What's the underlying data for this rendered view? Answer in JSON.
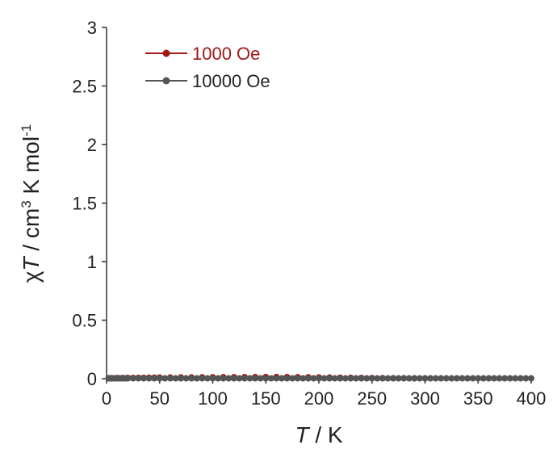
{
  "chart_data": {
    "type": "scatter",
    "xlabel_italic": "T",
    "xlabel_rest": " / K",
    "ylabel_parts": {
      "chi": "χ",
      "T": "T",
      "mid": " / cm",
      "sup1": "3",
      "units": " K mol",
      "sup2": "-1"
    },
    "xlim": [
      0,
      400
    ],
    "ylim": [
      0,
      3
    ],
    "xticks": [
      "0",
      "50",
      "100",
      "150",
      "200",
      "250",
      "300",
      "350",
      "400"
    ],
    "yticks": [
      "0",
      "0.5",
      "1",
      "1.5",
      "2",
      "2.5",
      "3"
    ],
    "grid": false,
    "legend_position": "top-left",
    "series": [
      {
        "name": "1000 Oe",
        "color": "#a01818",
        "x": [
          2,
          5,
          10,
          15,
          20,
          25,
          30,
          35,
          40,
          45,
          50,
          60,
          70,
          80,
          90,
          100,
          110,
          120,
          130,
          140,
          150,
          160,
          170,
          180,
          190,
          200,
          210,
          220,
          230,
          240,
          250,
          260,
          270,
          280,
          290,
          300
        ],
        "y": [
          0.005,
          0.005,
          0.006,
          0.006,
          0.007,
          0.007,
          0.008,
          0.008,
          0.009,
          0.009,
          0.01,
          0.01,
          0.011,
          0.011,
          0.012,
          0.012,
          0.013,
          0.013,
          0.014,
          0.014,
          0.015,
          0.015,
          0.014,
          0.013,
          0.012,
          0.011,
          0.01,
          0.009,
          0.008,
          0.007,
          0.006,
          0.005,
          0.004,
          0.004,
          0.003,
          0.003
        ]
      },
      {
        "name": "10000 Oe",
        "color": "#555555",
        "x": [
          2,
          4,
          6,
          8,
          10,
          12,
          14,
          16,
          18,
          20,
          25,
          30,
          35,
          40,
          45,
          50,
          55,
          60,
          65,
          70,
          75,
          80,
          85,
          90,
          95,
          100,
          105,
          110,
          115,
          120,
          125,
          130,
          135,
          140,
          145,
          150,
          155,
          160,
          165,
          170,
          175,
          180,
          185,
          190,
          195,
          200,
          205,
          210,
          215,
          220,
          225,
          230,
          235,
          240,
          245,
          250,
          255,
          260,
          265,
          270,
          275,
          280,
          285,
          290,
          295,
          300,
          305,
          310,
          315,
          320,
          325,
          330,
          335,
          340,
          345,
          350,
          355,
          360,
          365,
          370,
          375,
          380,
          385,
          390,
          395,
          400
        ],
        "y": [
          0.003,
          0.003,
          0.003,
          0.003,
          0.003,
          0.003,
          0.003,
          0.003,
          0.003,
          0.003,
          0.003,
          0.003,
          0.003,
          0.003,
          0.003,
          0.003,
          0.003,
          0.003,
          0.003,
          0.003,
          0.003,
          0.003,
          0.003,
          0.003,
          0.003,
          0.003,
          0.003,
          0.003,
          0.003,
          0.003,
          0.003,
          0.003,
          0.003,
          0.003,
          0.003,
          0.003,
          0.003,
          0.003,
          0.003,
          0.003,
          0.003,
          0.003,
          0.003,
          0.003,
          0.003,
          0.003,
          0.003,
          0.003,
          0.003,
          0.003,
          0.003,
          0.003,
          0.003,
          0.003,
          0.003,
          0.003,
          0.003,
          0.003,
          0.003,
          0.003,
          0.003,
          0.003,
          0.003,
          0.003,
          0.003,
          0.003,
          0.003,
          0.003,
          0.003,
          0.003,
          0.003,
          0.003,
          0.003,
          0.003,
          0.003,
          0.003,
          0.003,
          0.003,
          0.003,
          0.003,
          0.003,
          0.003,
          0.003,
          0.003,
          0.003,
          0.003
        ]
      }
    ]
  }
}
